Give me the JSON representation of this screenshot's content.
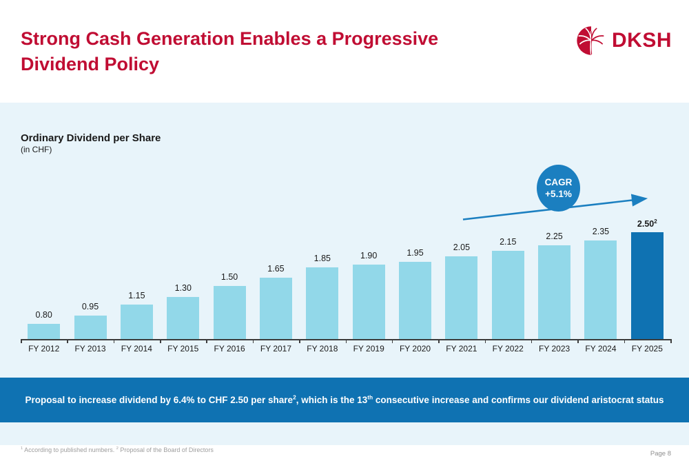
{
  "header": {
    "title_line1": "Strong Cash Generation Enables a Progressive",
    "title_line2": "Dividend Policy",
    "logo_text": "DKSH"
  },
  "chart": {
    "title": "Ordinary Dividend per Share",
    "subtitle": "(in CHF)",
    "cagr_line1": "CAGR",
    "cagr_line2": "+5.1%"
  },
  "chart_data": {
    "type": "bar",
    "title": "Ordinary Dividend per Share",
    "ylabel": "(in CHF)",
    "categories": [
      "FY 2012",
      "FY 2013",
      "FY 2014",
      "FY 2015",
      "FY 2016",
      "FY 2017",
      "FY 2018",
      "FY 2019",
      "FY 2020",
      "FY 2021",
      "FY 2022",
      "FY 2023",
      "FY 2024",
      "FY 2025"
    ],
    "values": [
      0.8,
      0.95,
      1.15,
      1.3,
      1.5,
      1.65,
      1.85,
      1.9,
      1.95,
      2.05,
      2.15,
      2.25,
      2.35,
      2.5
    ],
    "highlight_index": 13,
    "highlight_value_superscript": "2",
    "bar_color": "#92d8e9",
    "highlight_bar_color": "#0f72b2",
    "baseline_value": 0.5,
    "grid": false,
    "legend": "none",
    "annotation": {
      "text": "CAGR +5.1%",
      "type": "trend-arrow"
    }
  },
  "banner": {
    "part1": "Proposal to increase dividend by 6.4% to CHF 2.50 per share",
    "sup1": "2",
    "part2": ", which is the 13",
    "sup2": "th",
    "part3": " consecutive increase and confirms our dividend aristocrat status"
  },
  "footnotes": {
    "sup1": "1",
    "text1": " According to published numbers. ",
    "sup2": "2",
    "text2": " Proposal of the Board of Directors"
  },
  "footer": {
    "page_label": "Page 8"
  },
  "colors": {
    "brand_red": "#c00d33",
    "panel_bg": "#e8f4fa",
    "banner_bg": "#0f72b2",
    "accent_blue": "#1b7fc0",
    "bar_light": "#92d8e9",
    "bar_dark": "#0f72b2"
  }
}
